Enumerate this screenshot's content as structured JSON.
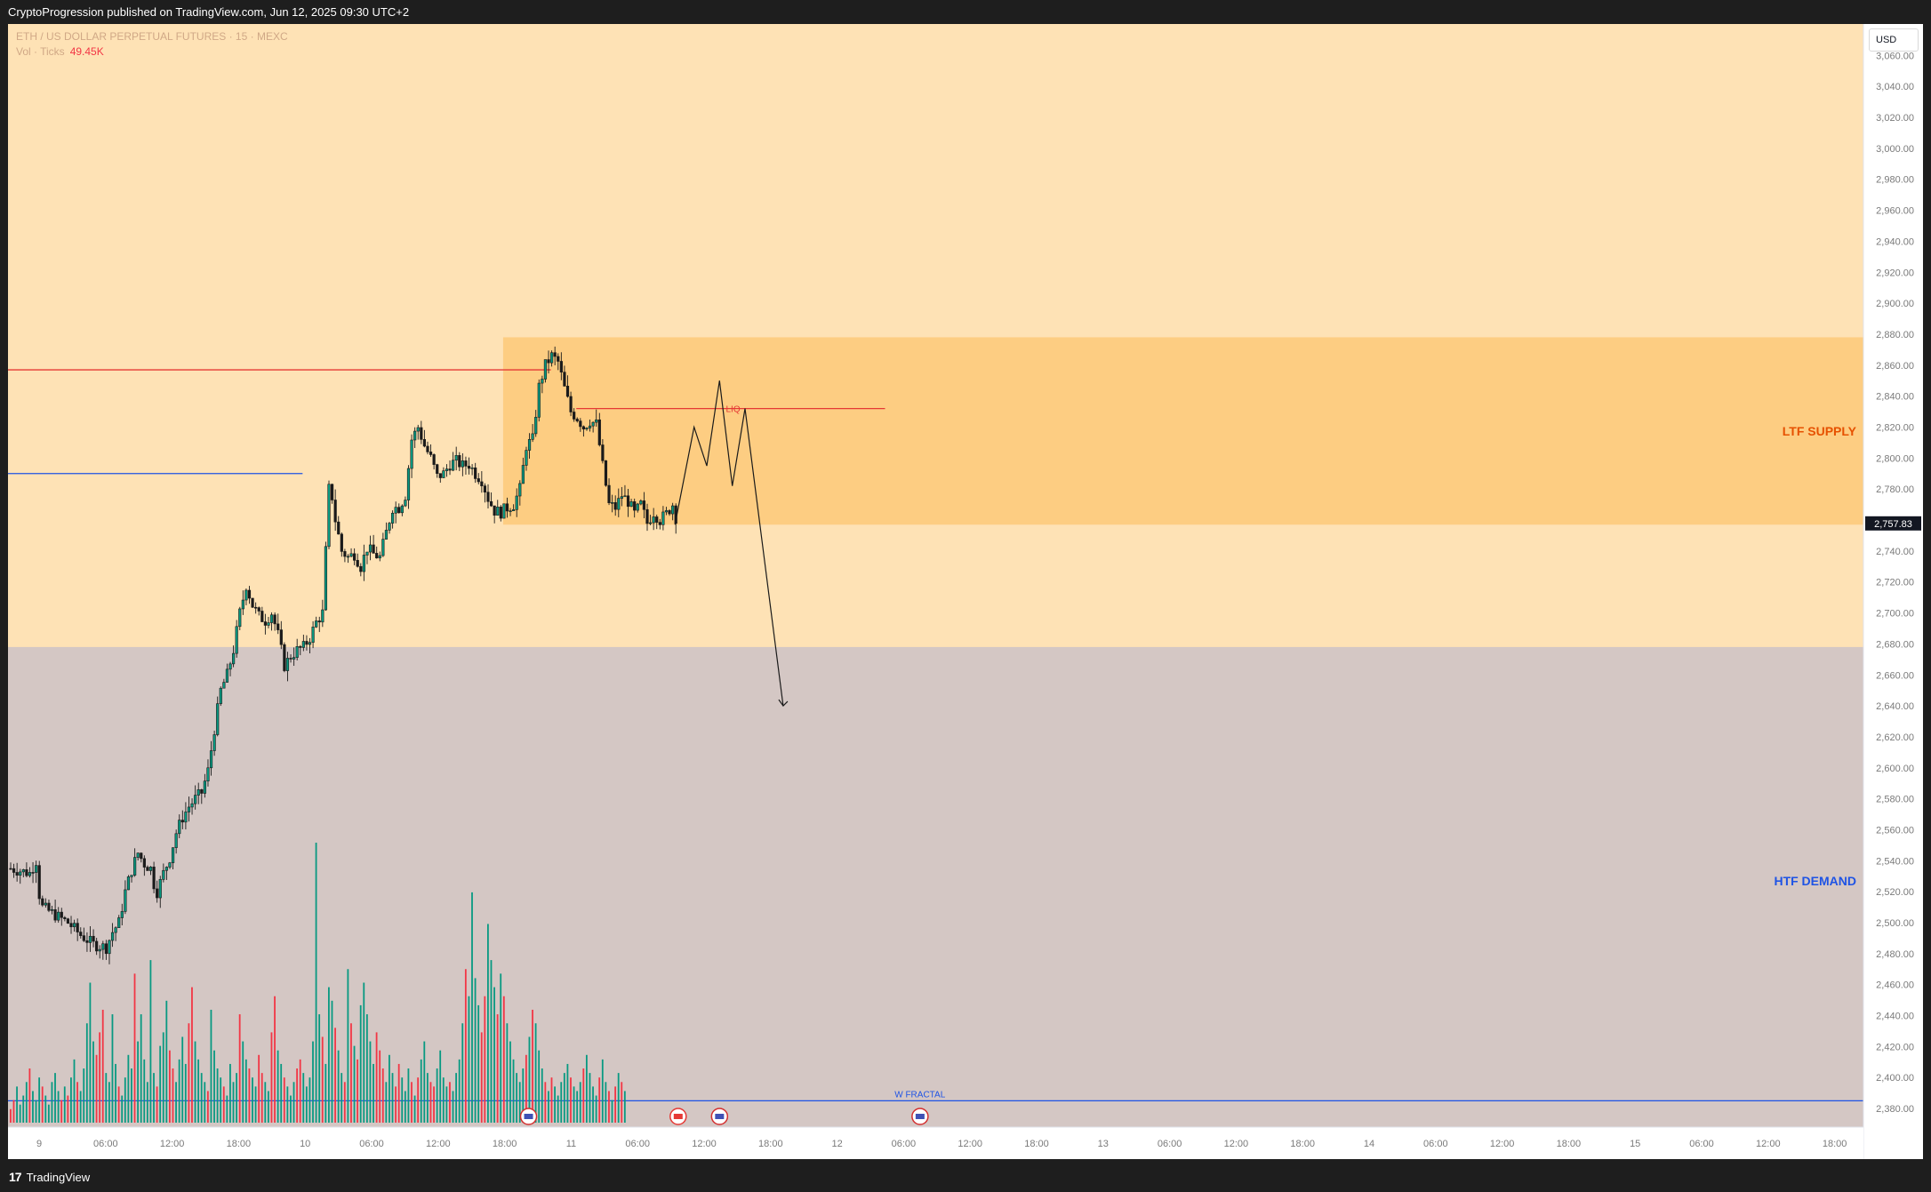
{
  "header": {
    "published_text": "CryptoProgression published on TradingView.com, Jun 12, 2025 09:30 UTC+2"
  },
  "footer": {
    "brand": "TradingView",
    "logo_glyph": "17"
  },
  "legend": {
    "symbol_line": "ETH / US DOLLAR PERPETUAL FUTURES · 15 · MEXC",
    "vol_label": "Vol · Ticks",
    "vol_value": "49.45K"
  },
  "currency": "USD",
  "colors": {
    "background": "#fee2b5",
    "supply_zone": "#fdcd82",
    "demand_zone": "#d4c7c4",
    "up_candle": "#089981",
    "down_candle": "#f23645",
    "candle_body": "#1a1a1a",
    "resistance_line": "#e53935",
    "support_line": "#1e53e5",
    "supply_label": "#e65100",
    "demand_label": "#1e53e5"
  },
  "chart_data": {
    "type": "candlestick",
    "symbol": "ETH / US DOLLAR PERPETUAL FUTURES",
    "exchange": "MEXC",
    "timeframe": "15",
    "ylim": [
      2368,
      3078
    ],
    "y_ticks": [
      "3,060.00",
      "3,040.00",
      "3,020.00",
      "3,000.00",
      "2,980.00",
      "2,960.00",
      "2,940.00",
      "2,920.00",
      "2,900.00",
      "2,880.00",
      "2,860.00",
      "2,840.00",
      "2,820.00",
      "2,800.00",
      "2,780.00",
      "2,760.00",
      "2,740.00",
      "2,720.00",
      "2,700.00",
      "2,680.00",
      "2,660.00",
      "2,640.00",
      "2,620.00",
      "2,600.00",
      "2,580.00",
      "2,560.00",
      "2,540.00",
      "2,520.00",
      "2,500.00",
      "2,480.00",
      "2,460.00",
      "2,440.00",
      "2,420.00",
      "2,400.00",
      "2,380.00"
    ],
    "x_ticks": [
      "9",
      "06:00",
      "12:00",
      "18:00",
      "10",
      "06:00",
      "12:00",
      "18:00",
      "11",
      "06:00",
      "12:00",
      "18:00",
      "12",
      "06:00",
      "12:00",
      "18:00",
      "13",
      "06:00",
      "12:00",
      "18:00",
      "14",
      "06:00",
      "12:00",
      "18:00",
      "15",
      "06:00",
      "12:00",
      "18:00"
    ],
    "last_price": "2,757.83",
    "price_path": [
      [
        0,
        2535
      ],
      [
        6,
        2532
      ],
      [
        8,
        2540
      ],
      [
        9,
        2518
      ],
      [
        10,
        2510
      ],
      [
        14,
        2505
      ],
      [
        18,
        2500
      ],
      [
        22,
        2492
      ],
      [
        26,
        2486
      ],
      [
        30,
        2484
      ],
      [
        32,
        2494
      ],
      [
        34,
        2500
      ],
      [
        36,
        2520
      ],
      [
        38,
        2534
      ],
      [
        40,
        2545
      ],
      [
        42,
        2538
      ],
      [
        44,
        2535
      ],
      [
        45,
        2525
      ],
      [
        46,
        2520
      ],
      [
        48,
        2532
      ],
      [
        50,
        2542
      ],
      [
        52,
        2558
      ],
      [
        54,
        2568
      ],
      [
        56,
        2575
      ],
      [
        58,
        2580
      ],
      [
        60,
        2584
      ],
      [
        62,
        2598
      ],
      [
        64,
        2625
      ],
      [
        66,
        2650
      ],
      [
        68,
        2660
      ],
      [
        70,
        2676
      ],
      [
        72,
        2700
      ],
      [
        74,
        2718
      ],
      [
        76,
        2705
      ],
      [
        78,
        2698
      ],
      [
        80,
        2695
      ],
      [
        82,
        2700
      ],
      [
        84,
        2686
      ],
      [
        86,
        2666
      ],
      [
        88,
        2672
      ],
      [
        90,
        2676
      ],
      [
        92,
        2678
      ],
      [
        94,
        2684
      ],
      [
        96,
        2694
      ],
      [
        98,
        2700
      ],
      [
        99,
        2740
      ],
      [
        100,
        2780
      ],
      [
        101,
        2775
      ],
      [
        102,
        2760
      ],
      [
        104,
        2740
      ],
      [
        106,
        2736
      ],
      [
        108,
        2738
      ],
      [
        110,
        2730
      ],
      [
        112,
        2742
      ],
      [
        114,
        2738
      ],
      [
        116,
        2736
      ],
      [
        118,
        2752
      ],
      [
        120,
        2768
      ],
      [
        122,
        2768
      ],
      [
        124,
        2776
      ],
      [
        126,
        2812
      ],
      [
        128,
        2820
      ],
      [
        130,
        2808
      ],
      [
        132,
        2800
      ],
      [
        134,
        2788
      ],
      [
        136,
        2790
      ],
      [
        138,
        2796
      ],
      [
        140,
        2798
      ],
      [
        142,
        2795
      ],
      [
        144,
        2796
      ],
      [
        146,
        2790
      ],
      [
        148,
        2786
      ],
      [
        150,
        2774
      ],
      [
        152,
        2766
      ],
      [
        154,
        2765
      ],
      [
        156,
        2768
      ],
      [
        158,
        2770
      ],
      [
        160,
        2780
      ],
      [
        162,
        2808
      ],
      [
        164,
        2812
      ],
      [
        166,
        2846
      ],
      [
        168,
        2860
      ],
      [
        170,
        2866
      ],
      [
        172,
        2862
      ],
      [
        174,
        2845
      ],
      [
        176,
        2830
      ],
      [
        178,
        2826
      ],
      [
        180,
        2820
      ],
      [
        182,
        2824
      ],
      [
        184,
        2822
      ],
      [
        186,
        2795
      ],
      [
        188,
        2770
      ],
      [
        190,
        2768
      ],
      [
        192,
        2776
      ],
      [
        194,
        2772
      ],
      [
        196,
        2764
      ],
      [
        198,
        2770
      ],
      [
        200,
        2758
      ],
      [
        202,
        2765
      ],
      [
        204,
        2760
      ],
      [
        206,
        2764
      ],
      [
        208,
        2770
      ],
      [
        209,
        2757.83
      ]
    ],
    "volume_per_bar": [
      3,
      5,
      8,
      4,
      6,
      9,
      12,
      7,
      5,
      10,
      8,
      6,
      4,
      9,
      11,
      7,
      5,
      8,
      6,
      10,
      14,
      9,
      7,
      12,
      22,
      31,
      18,
      15,
      20,
      25,
      11,
      9,
      24,
      13,
      8,
      6,
      10,
      15,
      12,
      33,
      18,
      24,
      14,
      9,
      36,
      11,
      8,
      17,
      20,
      27,
      16,
      12,
      9,
      14,
      19,
      13,
      22,
      30,
      18,
      14,
      11,
      9,
      7,
      25,
      16,
      12,
      10,
      8,
      6,
      13,
      9,
      11,
      24,
      18,
      14,
      12,
      10,
      8,
      15,
      11,
      9,
      7,
      20,
      28,
      16,
      13,
      10,
      8,
      6,
      9,
      12,
      14,
      11,
      8,
      10,
      18,
      62,
      24,
      19,
      13,
      30,
      27,
      21,
      16,
      11,
      9,
      34,
      22,
      17,
      14,
      26,
      31,
      24,
      18,
      13,
      20,
      16,
      12,
      9,
      15,
      11,
      8,
      13,
      10,
      7,
      12,
      9,
      6,
      10,
      14,
      18,
      11,
      9,
      8,
      12,
      16,
      10,
      8,
      9,
      7,
      11,
      14,
      22,
      34,
      28,
      51,
      32,
      26,
      20,
      28,
      44,
      36,
      30,
      24,
      33,
      28,
      22,
      18,
      14,
      11,
      9,
      12,
      15,
      19,
      25,
      22,
      16,
      12,
      9,
      7,
      10,
      8,
      6,
      9,
      11,
      13,
      10,
      8,
      7,
      9,
      12,
      15,
      11,
      8,
      6,
      10,
      14,
      9,
      7,
      5,
      8,
      11,
      9,
      7
    ],
    "zones": [
      {
        "label": "LTF SUPPLY",
        "from": 2757,
        "to": 2878
      },
      {
        "label": "HTF DEMAND",
        "from": 2368,
        "to": 2678
      }
    ],
    "levels": [
      {
        "label": "",
        "price": 2857,
        "color": "red"
      },
      {
        "label": "",
        "price": 2790,
        "color": "blue"
      },
      {
        "label": "LIQ",
        "price": 2832,
        "color": "red"
      },
      {
        "label": "W FRACTAL",
        "price": 2385,
        "color": "blue"
      }
    ],
    "projection_path": [
      [
        209,
        2757
      ],
      [
        215,
        2820
      ],
      [
        219,
        2795
      ],
      [
        223,
        2850
      ],
      [
        227,
        2782
      ],
      [
        231,
        2832
      ],
      [
        243,
        2640
      ]
    ],
    "event_markers": 4,
    "grid": false
  }
}
